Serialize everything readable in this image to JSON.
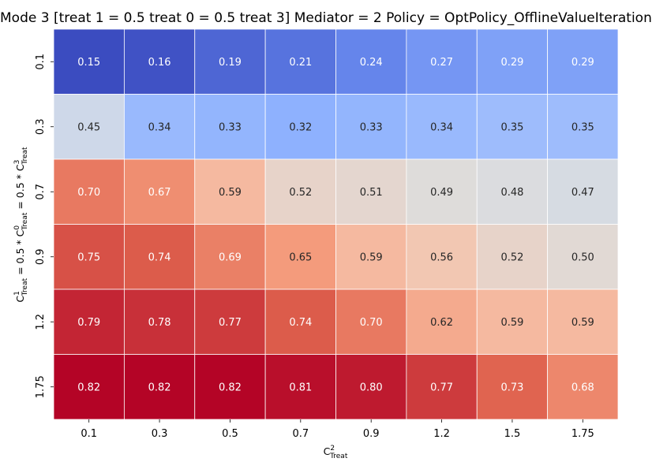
{
  "chart_data": {
    "type": "heatmap",
    "title": "Mode 3 [treat 1 = 0.5 treat 0 = 0.5 treat 3] Mediator = 2 Policy = OptPolicy_OfflineValueIteration",
    "xlabel": "C^2_Treat",
    "ylabel": "C^1_Treat = 0.5 * C^0_Treat = 0.5 * C^3_Treat",
    "x_categories": [
      "0.1",
      "0.3",
      "0.5",
      "0.7",
      "0.9",
      "1.2",
      "1.5",
      "1.75"
    ],
    "y_categories": [
      "0.1",
      "0.3",
      "0.7",
      "0.9",
      "1.2",
      "1.75"
    ],
    "values": [
      [
        0.15,
        0.16,
        0.19,
        0.21,
        0.24,
        0.27,
        0.29,
        0.29
      ],
      [
        0.45,
        0.34,
        0.33,
        0.32,
        0.33,
        0.34,
        0.35,
        0.35
      ],
      [
        0.7,
        0.67,
        0.59,
        0.52,
        0.51,
        0.49,
        0.48,
        0.47
      ],
      [
        0.75,
        0.74,
        0.69,
        0.65,
        0.59,
        0.56,
        0.52,
        0.5
      ],
      [
        0.79,
        0.78,
        0.77,
        0.74,
        0.7,
        0.62,
        0.59,
        0.59
      ],
      [
        0.82,
        0.82,
        0.82,
        0.81,
        0.8,
        0.77,
        0.73,
        0.68
      ]
    ],
    "value_format": "2 decimals",
    "colormap": "coolwarm",
    "vmin": 0.15,
    "vmax": 0.82,
    "colorbar": false,
    "grid": false,
    "cell_border_color": "#ffffff"
  }
}
